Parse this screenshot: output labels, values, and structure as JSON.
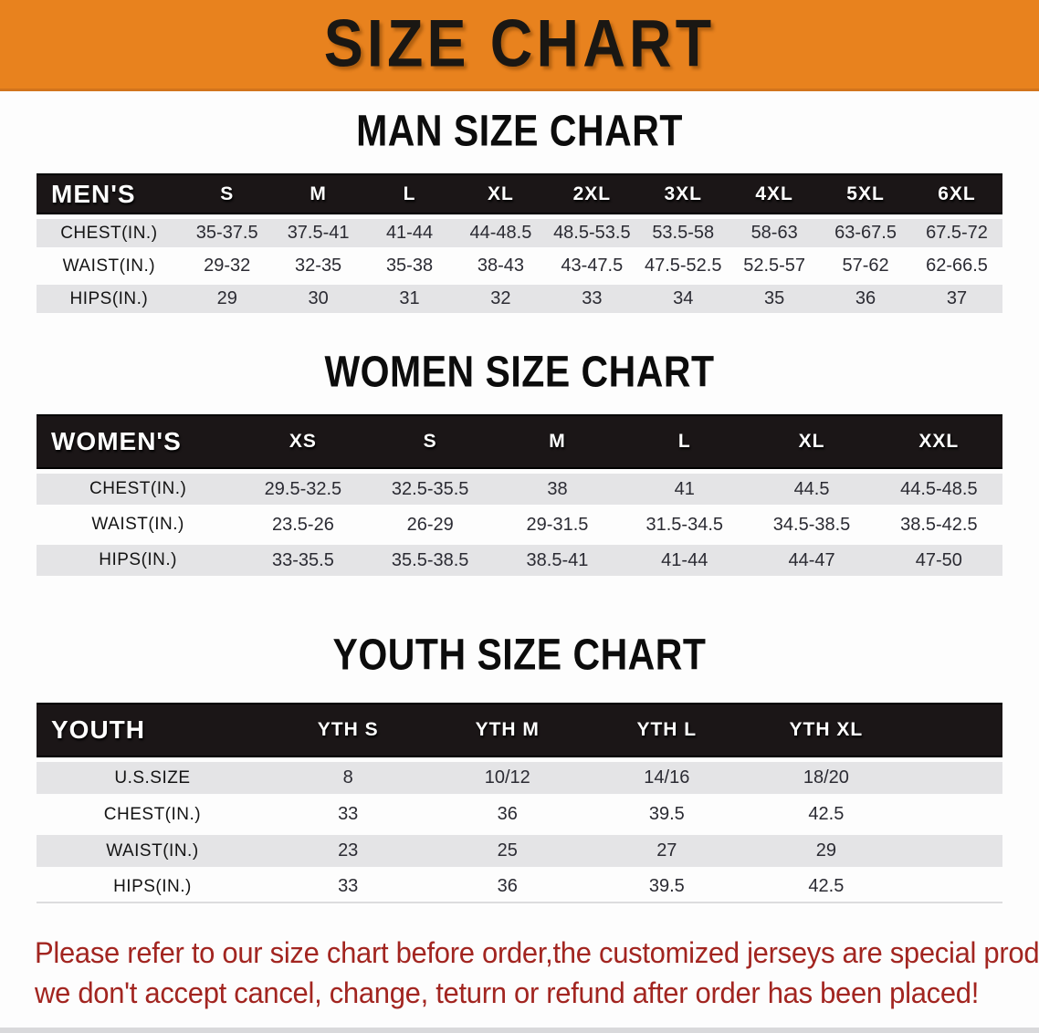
{
  "banner": {
    "title": "SIZE CHART",
    "bg_color": "#E8821E"
  },
  "sections": [
    {
      "heading": "MAN SIZE CHART",
      "table": {
        "header_label": "MEN'S",
        "columns": [
          "S",
          "M",
          "L",
          "XL",
          "2XL",
          "3XL",
          "4XL",
          "5XL",
          "6XL"
        ],
        "rows": [
          {
            "label": "CHEST(IN.)",
            "values": [
              "35-37.5",
              "37.5-41",
              "41-44",
              "44-48.5",
              "48.5-53.5",
              "53.5-58",
              "58-63",
              "63-67.5",
              "67.5-72"
            ]
          },
          {
            "label": "WAIST(IN.)",
            "values": [
              "29-32",
              "32-35",
              "35-38",
              "38-43",
              "43-47.5",
              "47.5-52.5",
              "52.5-57",
              "57-62",
              "62-66.5"
            ]
          },
          {
            "label": "HIPS(IN.)",
            "values": [
              "29",
              "30",
              "31",
              "32",
              "33",
              "34",
              "35",
              "36",
              "37"
            ]
          }
        ]
      }
    },
    {
      "heading": "WOMEN SIZE CHART",
      "table": {
        "header_label": "WOMEN'S",
        "columns": [
          "XS",
          "S",
          "M",
          "L",
          "XL",
          "XXL"
        ],
        "rows": [
          {
            "label": "CHEST(IN.)",
            "values": [
              "29.5-32.5",
              "32.5-35.5",
              "38",
              "41",
              "44.5",
              "44.5-48.5"
            ]
          },
          {
            "label": "WAIST(IN.)",
            "values": [
              "23.5-26",
              "26-29",
              "29-31.5",
              "31.5-34.5",
              "34.5-38.5",
              "38.5-42.5"
            ]
          },
          {
            "label": "HIPS(IN.)",
            "values": [
              "33-35.5",
              "35.5-38.5",
              "38.5-41",
              "41-44",
              "44-47",
              "47-50"
            ]
          }
        ]
      }
    },
    {
      "heading": "YOUTH SIZE CHART",
      "table": {
        "header_label": "YOUTH",
        "columns": [
          "YTH S",
          "YTH M",
          "YTH L",
          "YTH XL"
        ],
        "rows": [
          {
            "label": "U.S.SIZE",
            "values": [
              "8",
              "10/12",
              "14/16",
              "18/20"
            ]
          },
          {
            "label": "CHEST(IN.)",
            "values": [
              "33",
              "36",
              "39.5",
              "42.5"
            ]
          },
          {
            "label": "WAIST(IN.)",
            "values": [
              "23",
              "25",
              "27",
              "29"
            ]
          },
          {
            "label": "HIPS(IN.)",
            "values": [
              "33",
              "36",
              "39.5",
              "42.5"
            ]
          }
        ]
      }
    }
  ],
  "footer_note": {
    "line1": "Please refer to our size chart before order,the customized jerseys are special products,",
    "line2": "we don't accept cancel, change, teturn or refund after order has been placed!",
    "text_color": "#A22520"
  },
  "colors": {
    "banner_orange": "#E8821E",
    "header_bar_black": "#1B1617",
    "row_stripe_grey": "#E4E4E6",
    "note_red": "#A22520"
  }
}
